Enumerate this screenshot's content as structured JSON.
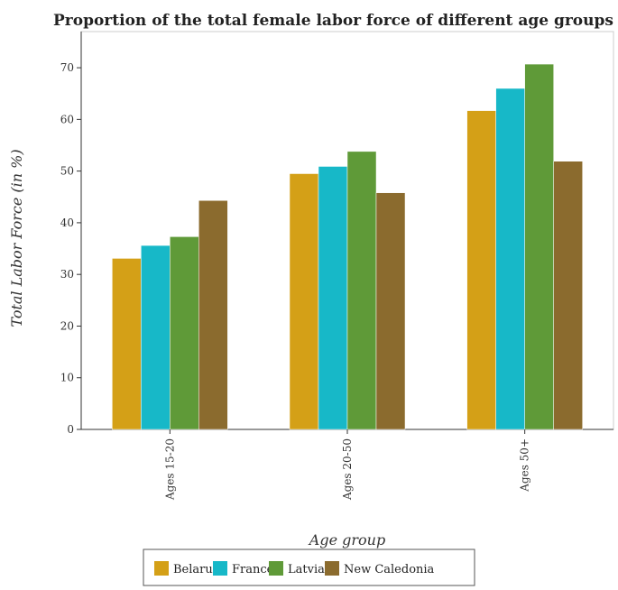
{
  "chart_data": {
    "type": "bar",
    "title": "Proportion of the total female labor force of different age groups participat",
    "xlabel": "Age group",
    "ylabel": "Total Labor Force (in %)",
    "categories": [
      "Ages 15-20",
      "Ages 20-50",
      "Ages 50+"
    ],
    "ylim": [
      0,
      77
    ],
    "yticks": [
      0,
      10,
      20,
      30,
      40,
      50,
      60,
      70
    ],
    "grid": false,
    "legend_position": "bottom",
    "series": [
      {
        "name": "Belarus",
        "color": "#d4a017",
        "values": [
          33.1,
          49.5,
          61.7
        ]
      },
      {
        "name": "France",
        "color": "#17b8c8",
        "values": [
          35.6,
          50.9,
          66.0
        ]
      },
      {
        "name": "Latvia",
        "color": "#5f9a38",
        "values": [
          37.3,
          53.8,
          70.7
        ]
      },
      {
        "name": "New Caledonia",
        "color": "#8b6b2e",
        "values": [
          44.3,
          45.8,
          51.9
        ]
      }
    ]
  }
}
